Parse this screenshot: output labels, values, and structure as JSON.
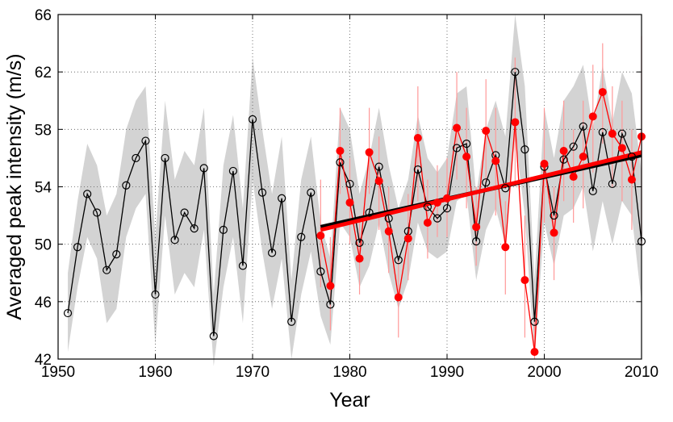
{
  "chart_data": {
    "type": "line",
    "title": "",
    "xlabel": "Year",
    "ylabel": "Averaged peak intensity (m/s)",
    "xlim": [
      1950,
      2010
    ],
    "ylim": [
      42,
      66
    ],
    "xticks": [
      1950,
      1960,
      1970,
      1980,
      1990,
      2000,
      2010
    ],
    "yticks": [
      42,
      46,
      50,
      54,
      58,
      62,
      66
    ],
    "grid": true,
    "legend": "none",
    "colors": {
      "black_series": "#000000",
      "red_series": "#ff0000",
      "band": "#d3d3d3",
      "red_errorbar": "#ff9999"
    },
    "series": [
      {
        "marker": "open-circle",
        "color": "#000000",
        "x": [
          1951,
          1952,
          1953,
          1954,
          1955,
          1956,
          1957,
          1958,
          1959,
          1960,
          1961,
          1962,
          1963,
          1964,
          1965,
          1966,
          1967,
          1968,
          1969,
          1970,
          1971,
          1972,
          1973,
          1974,
          1975,
          1976,
          1977,
          1978,
          1979,
          1980,
          1981,
          1982,
          1983,
          1984,
          1985,
          1986,
          1987,
          1988,
          1989,
          1990,
          1991,
          1992,
          1993,
          1994,
          1995,
          1996,
          1997,
          1998,
          1999,
          2000,
          2001,
          2002,
          2003,
          2004,
          2005,
          2006,
          2007,
          2008,
          2009,
          2010
        ],
        "y": [
          45.2,
          49.8,
          53.5,
          52.2,
          48.2,
          49.3,
          54.1,
          56.0,
          57.2,
          46.5,
          56.0,
          50.3,
          52.2,
          51.1,
          55.3,
          43.6,
          51.0,
          55.1,
          48.5,
          58.7,
          53.6,
          49.4,
          53.2,
          44.6,
          50.5,
          53.6,
          48.1,
          45.8,
          55.7,
          54.2,
          50.1,
          52.2,
          55.4,
          51.8,
          48.9,
          50.9,
          55.2,
          52.6,
          51.8,
          52.5,
          56.7,
          57.0,
          50.2,
          54.3,
          56.2,
          53.9,
          62.0,
          56.6,
          44.6,
          55.4,
          52.0,
          55.9,
          56.8,
          58.2,
          53.7,
          57.8,
          54.2,
          57.7,
          56.1,
          50.2
        ],
        "band_lower": [
          42.5,
          47.0,
          50.5,
          49.0,
          44.5,
          45.5,
          50.5,
          52.5,
          53.5,
          43.0,
          52.0,
          46.5,
          48.0,
          47.0,
          51.0,
          41.5,
          47.0,
          50.5,
          44.5,
          54.5,
          49.5,
          45.5,
          49.0,
          42.0,
          46.5,
          49.5,
          45.0,
          43.0,
          51.5,
          50.5,
          47.0,
          48.5,
          51.5,
          48.0,
          45.5,
          47.5,
          51.5,
          49.5,
          49.0,
          49.5,
          53.0,
          53.5,
          47.5,
          51.0,
          52.5,
          50.0,
          57.5,
          52.0,
          42.0,
          51.5,
          48.5,
          52.0,
          52.5,
          54.0,
          49.5,
          53.0,
          50.0,
          53.0,
          52.0,
          46.0
        ],
        "band_upper": [
          48.0,
          53.0,
          57.0,
          55.5,
          52.0,
          53.5,
          58.0,
          60.0,
          61.0,
          50.5,
          60.0,
          54.5,
          56.5,
          55.5,
          59.5,
          46.5,
          55.5,
          59.0,
          52.5,
          63.0,
          58.0,
          53.5,
          57.5,
          47.5,
          54.5,
          57.5,
          51.5,
          49.0,
          59.5,
          58.0,
          53.5,
          56.0,
          59.5,
          55.5,
          52.5,
          54.5,
          59.0,
          56.0,
          55.0,
          56.0,
          60.5,
          61.0,
          53.5,
          58.0,
          60.0,
          57.5,
          66.0,
          61.0,
          47.5,
          59.5,
          56.0,
          60.0,
          61.0,
          62.5,
          58.0,
          62.5,
          58.5,
          62.0,
          60.5,
          55.0
        ]
      },
      {
        "marker": "filled-circle",
        "color": "#ff0000",
        "x": [
          1977,
          1978,
          1979,
          1980,
          1981,
          1982,
          1983,
          1984,
          1985,
          1986,
          1987,
          1988,
          1989,
          1990,
          1991,
          1992,
          1993,
          1994,
          1995,
          1996,
          1997,
          1998,
          1999,
          2000,
          2001,
          2002,
          2003,
          2004,
          2005,
          2006,
          2007,
          2008,
          2009,
          2010
        ],
        "y": [
          50.6,
          47.1,
          56.5,
          52.9,
          49.0,
          56.4,
          54.4,
          50.9,
          46.3,
          50.4,
          57.4,
          51.5,
          52.9,
          53.2,
          58.1,
          56.1,
          51.2,
          57.9,
          55.8,
          49.8,
          58.5,
          47.5,
          42.5,
          55.6,
          50.8,
          56.5,
          54.7,
          56.1,
          58.9,
          60.6,
          57.7,
          56.7,
          54.5,
          57.5
        ],
        "err_lower": [
          47.0,
          44.0,
          53.5,
          50.0,
          46.5,
          53.5,
          51.0,
          48.0,
          43.5,
          47.5,
          53.0,
          49.0,
          50.5,
          50.5,
          54.5,
          52.5,
          48.5,
          54.0,
          52.0,
          46.5,
          54.0,
          43.5,
          42.0,
          51.5,
          47.5,
          53.0,
          51.5,
          52.5,
          55.0,
          57.0,
          54.0,
          53.0,
          51.0,
          50.0
        ],
        "err_upper": [
          54.5,
          50.5,
          59.5,
          56.0,
          52.0,
          59.5,
          57.5,
          54.0,
          49.0,
          53.5,
          61.0,
          54.5,
          55.5,
          56.0,
          62.0,
          59.5,
          54.0,
          61.5,
          59.5,
          53.0,
          63.0,
          52.0,
          45.0,
          59.5,
          54.0,
          60.0,
          58.0,
          60.0,
          62.5,
          64.0,
          61.0,
          60.0,
          58.0,
          64.5
        ]
      }
    ],
    "trend_lines": [
      {
        "color": "#000000",
        "x": [
          1977,
          2010
        ],
        "y": [
          51.2,
          56.2
        ]
      },
      {
        "color": "#ff0000",
        "x": [
          1977,
          2010
        ],
        "y": [
          51.0,
          56.4
        ]
      }
    ]
  }
}
